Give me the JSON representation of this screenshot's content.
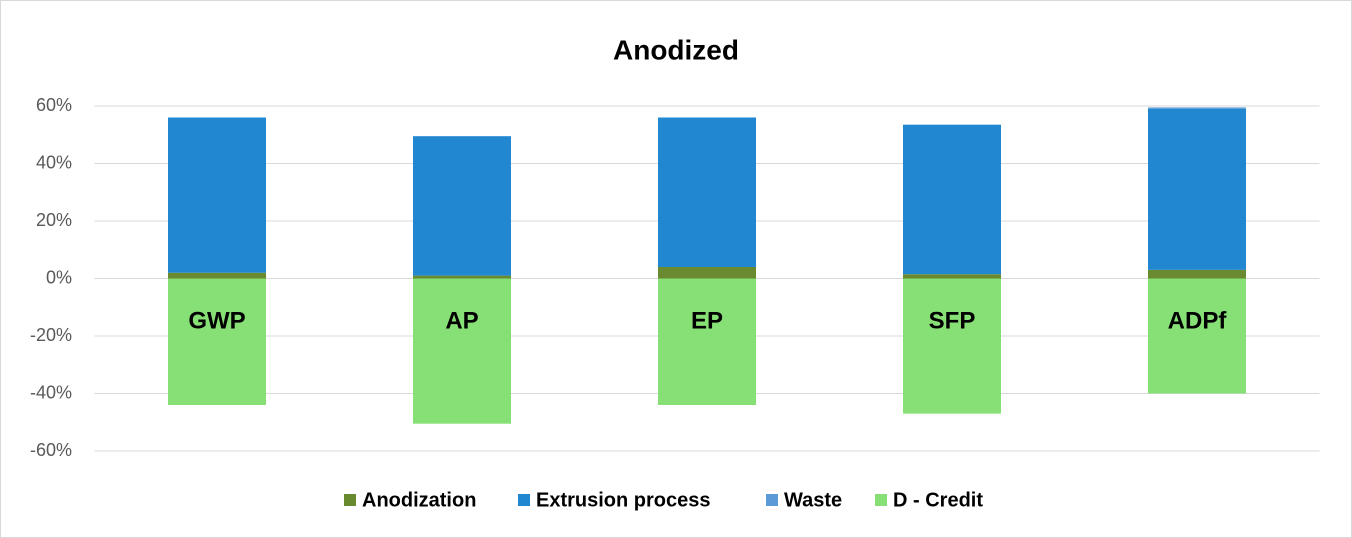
{
  "chart_data": {
    "type": "bar",
    "stacked": true,
    "title": "Anodized",
    "categories": [
      "GWP",
      "AP",
      "EP",
      "SFP",
      "ADPf"
    ],
    "series": [
      {
        "name": "Anodization",
        "color": "#6a8a2f",
        "values": [
          2,
          1,
          4,
          1.5,
          3
        ]
      },
      {
        "name": "Extrusion process",
        "color": "#2187d0",
        "values": [
          54,
          48.5,
          52,
          52,
          56
        ]
      },
      {
        "name": "Waste",
        "color": "#5b9bd5",
        "values": [
          0,
          0,
          0,
          0,
          0.5
        ]
      },
      {
        "name": "D - Credit",
        "color": "#87e075",
        "values": [
          -44,
          -50.5,
          -44,
          -47,
          -40
        ]
      }
    ],
    "ylim": [
      -60,
      60
    ],
    "yticks": [
      {
        "value": -60,
        "label": "-60%"
      },
      {
        "value": -40,
        "label": "-40%"
      },
      {
        "value": -20,
        "label": "-20%"
      },
      {
        "value": 0,
        "label": "0%"
      },
      {
        "value": 20,
        "label": "20%"
      },
      {
        "value": 40,
        "label": "40%"
      },
      {
        "value": 60,
        "label": "60%"
      }
    ],
    "grid": true,
    "legend": "bottom"
  }
}
